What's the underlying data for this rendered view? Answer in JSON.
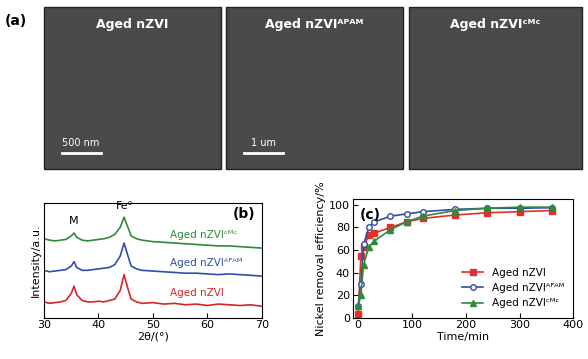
{
  "chart_data": [
    {
      "type": "image",
      "panel_label": "(a)",
      "title": "Aged nZVI",
      "annotations": [
        "500 nm"
      ]
    },
    {
      "type": "image",
      "title": "Aged nZVIᴬᴾᴬᴹ",
      "annotations": [
        "1 um"
      ]
    },
    {
      "type": "image",
      "title": "Aged nZVIᶜᴹᶜ"
    },
    {
      "type": "line",
      "panel_label": "(b)",
      "x_label": "2θ/(°)",
      "y_label": "Intensity/a.u.",
      "x": [
        30,
        31,
        32,
        33,
        34,
        35,
        35.5,
        36,
        37,
        38,
        39,
        40,
        41,
        42,
        43,
        44,
        44.7,
        45.5,
        46,
        47,
        48,
        50,
        52,
        54,
        56,
        58,
        60,
        62,
        64,
        66,
        68,
        70
      ],
      "xlim": [
        30,
        70
      ],
      "xticks": [
        30,
        40,
        50,
        60,
        70
      ],
      "ylim": [
        0,
        8
      ],
      "tick_labels": "x",
      "series": [
        {
          "name": "Aged nZVI",
          "color": "#d62728",
          "values": [
            1.1,
            1.0,
            1.05,
            1.1,
            1.2,
            1.7,
            2.2,
            1.6,
            1.2,
            1.1,
            1.1,
            1.15,
            1.1,
            1.2,
            1.3,
            1.9,
            3.0,
            1.9,
            1.3,
            1.1,
            1.0,
            1.05,
            0.95,
            1.0,
            0.9,
            0.95,
            0.85,
            0.95,
            0.9,
            0.85,
            0.9,
            0.8
          ]
        },
        {
          "name": "Aged nZVIᴬᴾᴬᴹ",
          "color": "#2e4fa3",
          "values": [
            3.3,
            3.2,
            3.25,
            3.3,
            3.35,
            3.6,
            3.9,
            3.5,
            3.3,
            3.3,
            3.35,
            3.4,
            3.45,
            3.5,
            3.7,
            4.3,
            5.2,
            4.2,
            3.6,
            3.4,
            3.3,
            3.25,
            3.2,
            3.15,
            3.1,
            3.1,
            3.05,
            3.0,
            3.05,
            3.0,
            2.95,
            2.9
          ]
        },
        {
          "name": "Aged nZVIᶜᴹᶜ",
          "color": "#2e8b3a",
          "values": [
            5.5,
            5.4,
            5.35,
            5.4,
            5.45,
            5.7,
            5.9,
            5.6,
            5.4,
            5.35,
            5.4,
            5.45,
            5.5,
            5.6,
            5.8,
            6.3,
            7.0,
            6.2,
            5.7,
            5.5,
            5.4,
            5.3,
            5.25,
            5.2,
            5.15,
            5.1,
            5.05,
            5.0,
            5.0,
            4.95,
            4.9,
            4.85
          ]
        }
      ],
      "annotations": [
        {
          "text": "M",
          "x": 35.5,
          "y": 6.4
        },
        {
          "text": "Fe⁰",
          "x": 44.7,
          "y": 7.4
        }
      ]
    },
    {
      "type": "line",
      "panel_label": "(c)",
      "x_label": "Time/min",
      "y_label": "Nickel removal efficiency/%",
      "x": [
        0,
        5,
        10,
        20,
        30,
        60,
        90,
        120,
        180,
        240,
        300,
        360
      ],
      "xlim": [
        -10,
        400
      ],
      "xticks": [
        0,
        100,
        200,
        300,
        400
      ],
      "ylim": [
        0,
        105
      ],
      "yticks": [
        0,
        20,
        40,
        60,
        80,
        100
      ],
      "legend": "lower right",
      "series": [
        {
          "name": "Aged nZVI",
          "color": "#e03030",
          "marker": "square",
          "values": [
            3,
            55,
            63,
            73,
            75,
            80,
            85,
            88,
            91,
            93,
            94,
            95
          ]
        },
        {
          "name": "Aged nZVIᴬᴾᴬᴹ",
          "color": "#2e4fa3",
          "marker": "open_circle",
          "values": [
            10,
            30,
            65,
            80,
            85,
            90,
            92,
            94,
            96,
            97,
            97,
            97.5
          ]
        },
        {
          "name": "Aged nZVIᶜᴹᶜ",
          "color": "#2e8b3a",
          "marker": "triangle",
          "values": [
            10,
            20,
            47,
            63,
            68,
            78,
            85,
            90,
            95,
            97,
            98,
            98
          ]
        }
      ]
    }
  ]
}
